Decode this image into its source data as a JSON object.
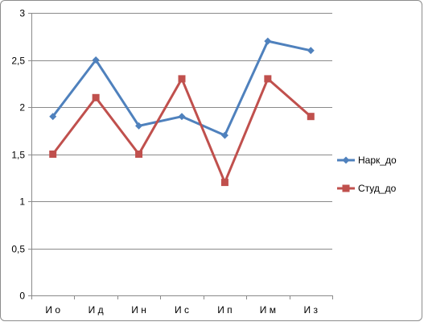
{
  "chart_data": {
    "type": "line",
    "title": "",
    "xlabel": "",
    "ylabel": "",
    "categories": [
      "И о",
      "И д",
      "И н",
      "И с",
      "И п",
      "И м",
      "И з"
    ],
    "ylim": [
      0,
      3
    ],
    "yticks": [
      0,
      0.5,
      1,
      1.5,
      2,
      2.5,
      3
    ],
    "ytick_labels": [
      "0",
      "0,5",
      "1",
      "1,5",
      "2",
      "2,5",
      "3"
    ],
    "grid": "horizontal",
    "legend_position": "right",
    "series": [
      {
        "name": "Нарк_до",
        "color": "#4f81bd",
        "marker": "diamond",
        "values": [
          1.9,
          2.5,
          1.8,
          1.9,
          1.7,
          2.7,
          2.6
        ]
      },
      {
        "name": "Студ_до",
        "color": "#c0504d",
        "marker": "square",
        "values": [
          1.5,
          2.1,
          1.5,
          2.3,
          1.2,
          2.3,
          1.9
        ]
      }
    ]
  }
}
